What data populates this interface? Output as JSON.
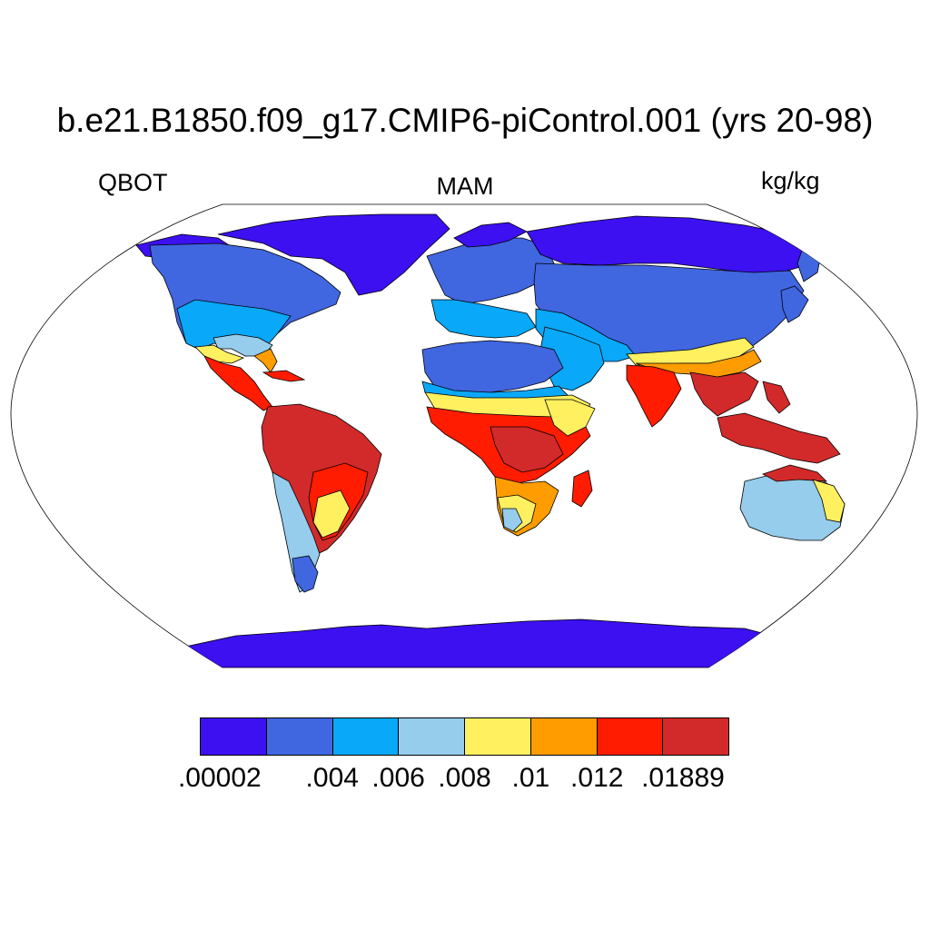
{
  "title": "b.e21.B1850.f09_g17.CMIP6-piControl.001 (yrs 20-98)",
  "left_label": "QBOT",
  "center_label": "MAM",
  "right_label": "kg/kg",
  "colorbar": {
    "colors": [
      "#3c10f0",
      "#4066e0",
      "#0aa8f8",
      "#96ccec",
      "#fff060",
      "#ff9c00",
      "#ff1c00",
      "#d22a2a"
    ],
    "labels": [
      ".00002",
      ".004",
      ".006",
      ".008",
      ".01",
      ".012",
      ".01889"
    ]
  }
}
